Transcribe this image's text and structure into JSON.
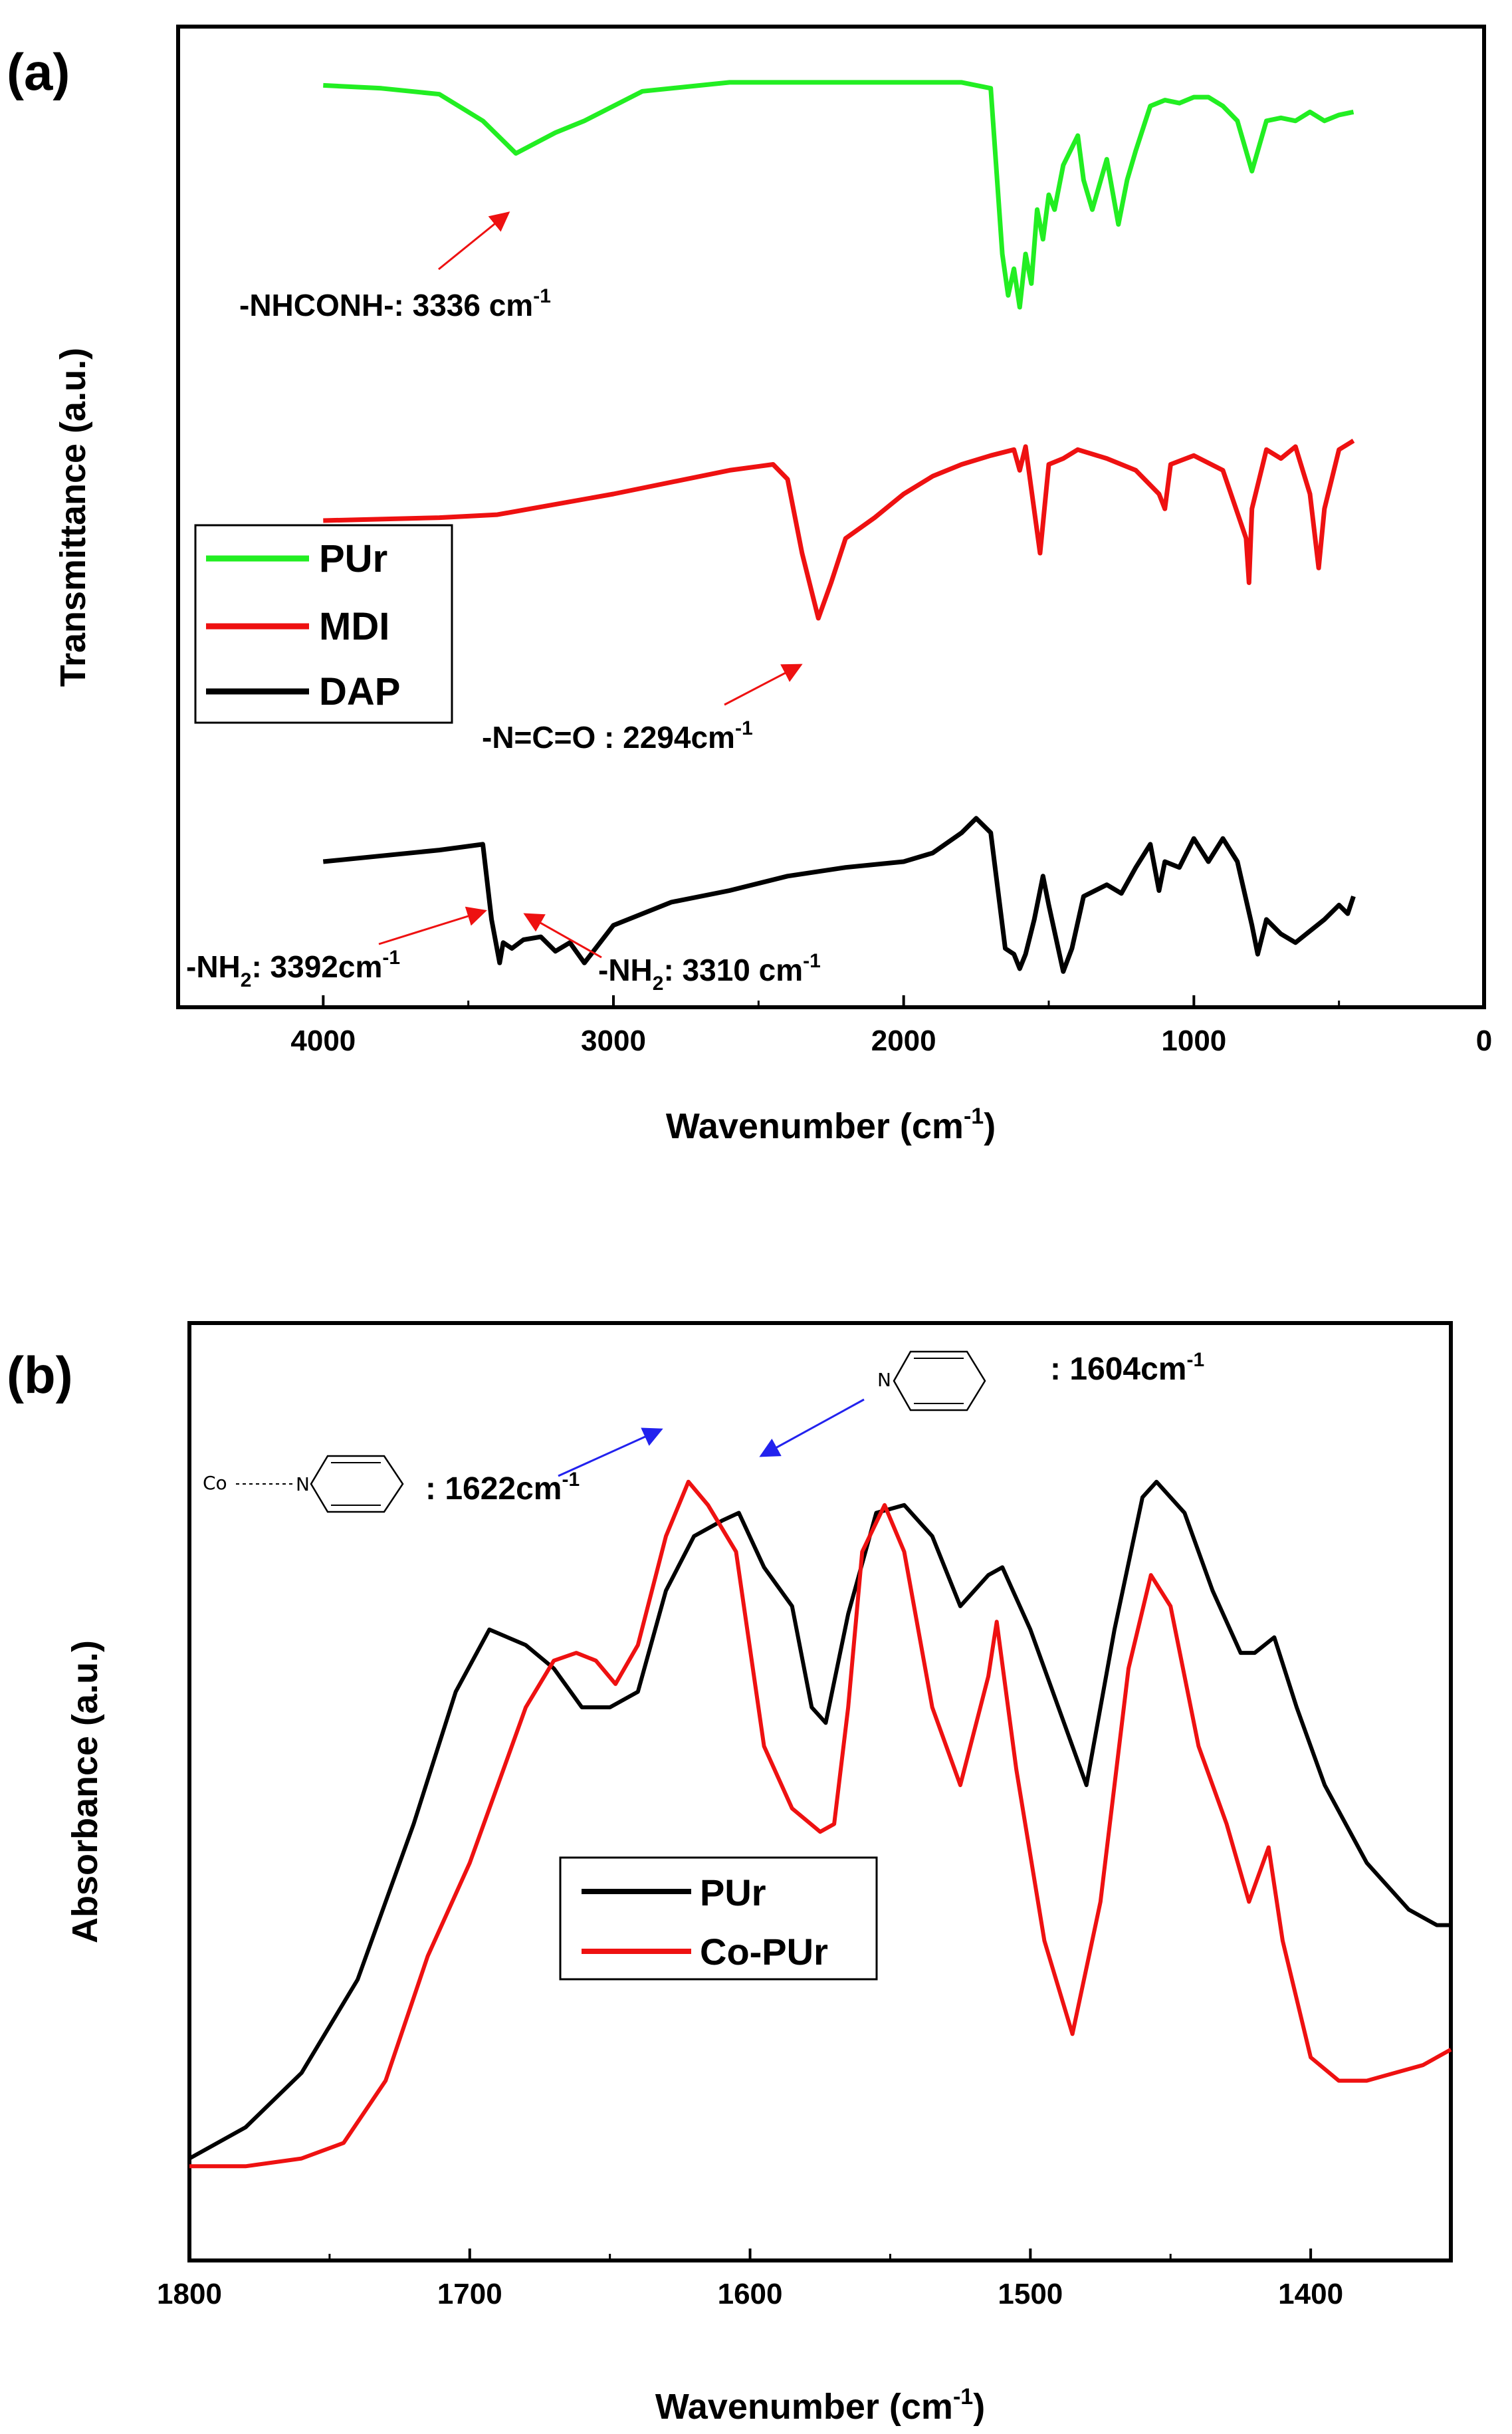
{
  "chart_data": [
    {
      "panel_label": "(a)",
      "type": "line",
      "xlabel": "Wavenumber (cm",
      "xlabel_sup": "-1",
      "xlabel_end": ")",
      "ylabel": "Transmittance (a.u.)",
      "xlim": [
        4500,
        0
      ],
      "xticks": [
        4000,
        3000,
        2000,
        1000,
        0
      ],
      "y_ticks_shown": false,
      "legend": {
        "position": "left-middle",
        "entries": [
          "PUr",
          "MDI",
          "DAP"
        ]
      },
      "series": [
        {
          "name": "PUr",
          "color": "#22ee22",
          "x": [
            4000,
            3800,
            3600,
            3450,
            3336,
            3200,
            3100,
            2900,
            2600,
            2300,
            2000,
            1800,
            1700,
            1660,
            1640,
            1620,
            1600,
            1580,
            1560,
            1540,
            1520,
            1500,
            1480,
            1450,
            1400,
            1380,
            1350,
            1300,
            1260,
            1230,
            1200,
            1150,
            1100,
            1050,
            1000,
            950,
            900,
            850,
            800,
            750,
            700,
            650,
            600,
            550,
            500,
            450
          ],
          "y": [
            97,
            96,
            94,
            85,
            74,
            81,
            85,
            95,
            98,
            98,
            98,
            98,
            96,
            40,
            26,
            35,
            22,
            40,
            30,
            55,
            45,
            60,
            55,
            70,
            80,
            65,
            55,
            72,
            50,
            65,
            75,
            90,
            92,
            91,
            93,
            93,
            90,
            85,
            68,
            85,
            86,
            85,
            88,
            85,
            87,
            88
          ]
        },
        {
          "name": "MDI",
          "color": "#ee1111",
          "x": [
            4000,
            3600,
            3400,
            3000,
            2600,
            2450,
            2400,
            2350,
            2294,
            2250,
            2200,
            2100,
            2000,
            1900,
            1800,
            1700,
            1620,
            1600,
            1580,
            1530,
            1520,
            1500,
            1450,
            1400,
            1300,
            1200,
            1120,
            1100,
            1080,
            1000,
            900,
            820,
            810,
            800,
            750,
            700,
            650,
            600,
            570,
            550,
            500,
            450
          ],
          "y": [
            51,
            52,
            53,
            60,
            68,
            70,
            65,
            40,
            18,
            30,
            45,
            52,
            60,
            66,
            70,
            73,
            75,
            68,
            76,
            40,
            50,
            70,
            72,
            75,
            72,
            68,
            60,
            55,
            70,
            73,
            68,
            45,
            30,
            55,
            75,
            72,
            76,
            60,
            35,
            55,
            75,
            78
          ]
        },
        {
          "name": "DAP",
          "color": "#000000",
          "x": [
            4000,
            3800,
            3600,
            3450,
            3420,
            3392,
            3380,
            3350,
            3310,
            3250,
            3200,
            3150,
            3100,
            3000,
            2800,
            2600,
            2400,
            2200,
            2000,
            1900,
            1800,
            1750,
            1700,
            1650,
            1620,
            1600,
            1580,
            1550,
            1520,
            1500,
            1450,
            1420,
            1380,
            1300,
            1250,
            1200,
            1150,
            1120,
            1100,
            1050,
            1000,
            950,
            900,
            850,
            800,
            780,
            750,
            700,
            650,
            600,
            550,
            500,
            470,
            450
          ],
          "y": [
            40,
            42,
            44,
            46,
            20,
            5,
            12,
            10,
            13,
            14,
            9,
            12,
            5,
            18,
            26,
            30,
            35,
            38,
            40,
            43,
            50,
            55,
            50,
            10,
            8,
            3,
            8,
            20,
            35,
            25,
            2,
            10,
            28,
            32,
            29,
            38,
            46,
            30,
            40,
            38,
            48,
            40,
            48,
            40,
            18,
            8,
            20,
            15,
            12,
            16,
            20,
            25,
            22,
            28
          ]
        }
      ],
      "annotations": [
        {
          "text": "-NHCONH-: 3336 cm",
          "sup": "-1",
          "arrow_to_x": 3336,
          "arrow_color": "#ee1111"
        },
        {
          "text": "-N=C=O : 2294cm",
          "sup": "-1",
          "arrow_to_x": 2294,
          "arrow_color": "#ee1111"
        },
        {
          "text": "-NH",
          "sub": "2",
          "rest": ": 3392cm",
          "sup": "-1",
          "arrow_to_x": 3392,
          "arrow_color": "#ee1111"
        },
        {
          "text": "-NH",
          "sub": "2",
          "rest": ": 3310 cm",
          "sup": "-1",
          "arrow_to_x": 3310,
          "arrow_color": "#ee1111"
        }
      ]
    },
    {
      "panel_label": "(b)",
      "type": "line",
      "xlabel": "Wavenumber (cm",
      "xlabel_sup": "-1",
      "xlabel_end": ")",
      "ylabel": "Absorbance (a.u.)",
      "xlim": [
        1800,
        1350
      ],
      "xticks": [
        1800,
        1700,
        1600,
        1500,
        1400
      ],
      "y_ticks_shown": false,
      "legend": {
        "position": "center",
        "entries": [
          "PUr",
          "Co-PUr"
        ]
      },
      "series": [
        {
          "name": "PUr",
          "color": "#000000",
          "x": [
            1800,
            1780,
            1760,
            1740,
            1720,
            1705,
            1693,
            1680,
            1670,
            1660,
            1650,
            1640,
            1630,
            1620,
            1610,
            1604,
            1595,
            1585,
            1578,
            1573,
            1565,
            1555,
            1545,
            1535,
            1525,
            1515,
            1510,
            1500,
            1490,
            1480,
            1470,
            1460,
            1455,
            1445,
            1435,
            1425,
            1420,
            1413,
            1405,
            1395,
            1380,
            1365,
            1355,
            1350
          ],
          "y": [
            0.02,
            0.06,
            0.13,
            0.25,
            0.45,
            0.62,
            0.7,
            0.68,
            0.65,
            0.6,
            0.6,
            0.62,
            0.75,
            0.82,
            0.84,
            0.85,
            0.78,
            0.73,
            0.6,
            0.58,
            0.72,
            0.85,
            0.86,
            0.82,
            0.73,
            0.77,
            0.78,
            0.7,
            0.6,
            0.5,
            0.7,
            0.87,
            0.89,
            0.85,
            0.75,
            0.67,
            0.67,
            0.69,
            0.6,
            0.5,
            0.4,
            0.34,
            0.32,
            0.32
          ]
        },
        {
          "name": "Co-PUr",
          "color": "#ee1111",
          "x": [
            1800,
            1780,
            1760,
            1745,
            1730,
            1715,
            1700,
            1690,
            1680,
            1670,
            1662,
            1655,
            1648,
            1640,
            1630,
            1622,
            1615,
            1605,
            1595,
            1585,
            1575,
            1570,
            1565,
            1560,
            1552,
            1545,
            1535,
            1525,
            1515,
            1512,
            1505,
            1495,
            1485,
            1475,
            1465,
            1457,
            1450,
            1440,
            1430,
            1422,
            1415,
            1410,
            1400,
            1390,
            1380,
            1370,
            1360,
            1350
          ],
          "y": [
            0.01,
            0.01,
            0.02,
            0.04,
            0.12,
            0.28,
            0.4,
            0.5,
            0.6,
            0.66,
            0.67,
            0.66,
            0.63,
            0.68,
            0.82,
            0.89,
            0.86,
            0.8,
            0.55,
            0.47,
            0.44,
            0.45,
            0.6,
            0.8,
            0.86,
            0.8,
            0.6,
            0.5,
            0.64,
            0.71,
            0.52,
            0.3,
            0.18,
            0.35,
            0.65,
            0.77,
            0.73,
            0.55,
            0.45,
            0.35,
            0.42,
            0.3,
            0.15,
            0.12,
            0.12,
            0.13,
            0.14,
            0.16
          ]
        }
      ],
      "annotations": [
        {
          "text": ": 1622cm",
          "sup": "-1",
          "arrow_to_x": 1622,
          "arrow_color": "#2222ee",
          "structure_left": "Co",
          "structure_atom": "N"
        },
        {
          "text": ": 1604cm",
          "sup": "-1",
          "arrow_to_x": 1604,
          "arrow_color": "#2222ee",
          "structure_atom": "N"
        }
      ]
    }
  ]
}
